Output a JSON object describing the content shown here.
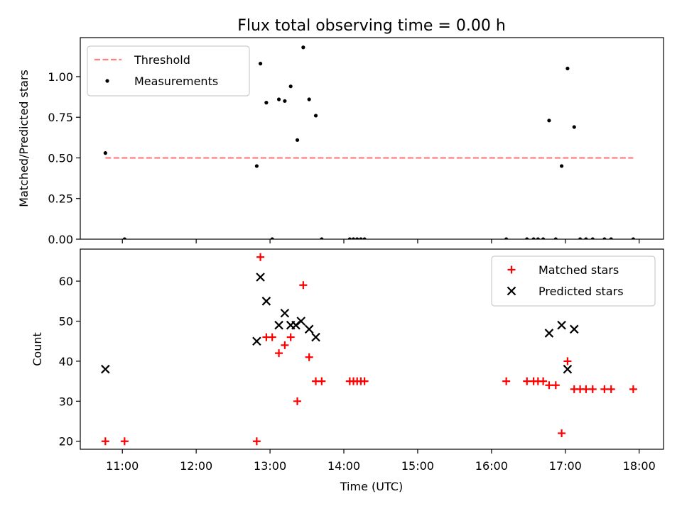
{
  "chart_data": {
    "title": "Flux total observing time = 0.00 h",
    "x_axis": {
      "label": "Time (UTC)",
      "ticks": [
        "11:00",
        "12:00",
        "13:00",
        "14:00",
        "15:00",
        "16:00",
        "17:00",
        "18:00"
      ],
      "tick_hours": [
        11,
        12,
        13,
        14,
        15,
        16,
        17,
        18
      ],
      "range_hours": [
        10.43,
        18.33
      ]
    },
    "panels": [
      {
        "type": "scatter",
        "ylabel": "Matched/Predicted stars",
        "ylim": [
          0,
          1.24
        ],
        "yticks": [
          "0.00",
          "0.25",
          "0.50",
          "0.75",
          "1.00"
        ],
        "ytick_values": [
          0,
          0.25,
          0.5,
          0.75,
          1.0
        ],
        "legend_position": "top-left",
        "series": [
          {
            "name": "Threshold",
            "kind": "line",
            "color": "#ff7f7f",
            "points": [
              [
                10.77,
                0.5
              ],
              [
                17.92,
                0.5
              ]
            ]
          },
          {
            "name": "Measurements",
            "kind": "scatter",
            "color": "#000000",
            "points": [
              [
                10.77,
                0.53
              ],
              [
                11.03,
                0.0
              ],
              [
                12.82,
                0.45
              ],
              [
                12.87,
                1.08
              ],
              [
                12.95,
                0.84
              ],
              [
                13.03,
                0.0
              ],
              [
                13.12,
                0.86
              ],
              [
                13.2,
                0.85
              ],
              [
                13.28,
                0.94
              ],
              [
                13.37,
                0.61
              ],
              [
                13.45,
                1.18
              ],
              [
                13.53,
                0.86
              ],
              [
                13.62,
                0.76
              ],
              [
                13.7,
                0.0
              ],
              [
                14.08,
                0.0
              ],
              [
                14.13,
                0.0
              ],
              [
                14.18,
                0.0
              ],
              [
                14.23,
                0.0
              ],
              [
                14.28,
                0.0
              ],
              [
                16.2,
                0.0
              ],
              [
                16.48,
                0.0
              ],
              [
                16.57,
                0.0
              ],
              [
                16.63,
                0.0
              ],
              [
                16.7,
                0.0
              ],
              [
                16.78,
                0.73
              ],
              [
                16.87,
                0.0
              ],
              [
                16.95,
                0.45
              ],
              [
                17.03,
                1.05
              ],
              [
                17.12,
                0.69
              ],
              [
                17.2,
                0.0
              ],
              [
                17.28,
                0.0
              ],
              [
                17.37,
                0.0
              ],
              [
                17.53,
                0.0
              ],
              [
                17.62,
                0.0
              ],
              [
                17.92,
                0.0
              ]
            ]
          }
        ]
      },
      {
        "type": "scatter",
        "ylabel": "Count",
        "ylim": [
          18,
          68
        ],
        "yticks": [
          "20",
          "30",
          "40",
          "50",
          "60"
        ],
        "ytick_values": [
          20,
          30,
          40,
          50,
          60
        ],
        "legend_position": "top-right",
        "series": [
          {
            "name": "Matched stars",
            "kind": "plus",
            "color": "#ff0000",
            "points": [
              [
                10.77,
                20
              ],
              [
                11.03,
                20
              ],
              [
                12.82,
                20
              ],
              [
                12.87,
                66
              ],
              [
                12.95,
                46
              ],
              [
                13.03,
                46
              ],
              [
                13.12,
                42
              ],
              [
                13.2,
                44
              ],
              [
                13.28,
                46
              ],
              [
                13.37,
                30
              ],
              [
                13.45,
                59
              ],
              [
                13.53,
                41
              ],
              [
                13.62,
                35
              ],
              [
                13.7,
                35
              ],
              [
                14.08,
                35
              ],
              [
                14.13,
                35
              ],
              [
                14.18,
                35
              ],
              [
                14.23,
                35
              ],
              [
                14.28,
                35
              ],
              [
                16.2,
                35
              ],
              [
                16.48,
                35
              ],
              [
                16.57,
                35
              ],
              [
                16.63,
                35
              ],
              [
                16.7,
                35
              ],
              [
                16.78,
                34
              ],
              [
                16.87,
                34
              ],
              [
                16.95,
                22
              ],
              [
                17.03,
                40
              ],
              [
                17.12,
                33
              ],
              [
                17.2,
                33
              ],
              [
                17.28,
                33
              ],
              [
                17.37,
                33
              ],
              [
                17.53,
                33
              ],
              [
                17.62,
                33
              ],
              [
                17.92,
                33
              ]
            ]
          },
          {
            "name": "Predicted stars",
            "kind": "x",
            "color": "#000000",
            "points": [
              [
                10.77,
                38
              ],
              [
                12.82,
                45
              ],
              [
                12.87,
                61
              ],
              [
                12.95,
                55
              ],
              [
                13.12,
                49
              ],
              [
                13.2,
                52
              ],
              [
                13.28,
                49
              ],
              [
                13.35,
                49
              ],
              [
                13.42,
                50
              ],
              [
                13.53,
                48
              ],
              [
                13.62,
                46
              ],
              [
                16.78,
                47
              ],
              [
                16.95,
                49
              ],
              [
                17.03,
                38
              ],
              [
                17.12,
                48
              ]
            ]
          }
        ]
      }
    ]
  }
}
